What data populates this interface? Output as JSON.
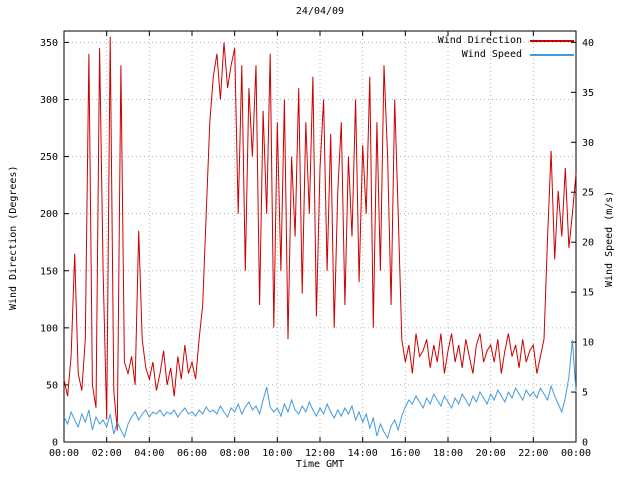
{
  "chart_data": {
    "type": "line",
    "title": "24/04/09",
    "xlabel": "Time GMT",
    "ylabel_left": "Wind Direction (Degrees)",
    "ylabel_right": "Wind Speed (m/s)",
    "x_range": [
      0,
      24
    ],
    "y_left_range": [
      0,
      360
    ],
    "y_right_range": [
      0,
      41.14
    ],
    "interval_minutes": 10,
    "x_ticks": [
      {
        "value": 0,
        "label": "00:00"
      },
      {
        "value": 2,
        "label": "02:00"
      },
      {
        "value": 4,
        "label": "04:00"
      },
      {
        "value": 6,
        "label": "06:00"
      },
      {
        "value": 8,
        "label": "08:00"
      },
      {
        "value": 10,
        "label": "10:00"
      },
      {
        "value": 12,
        "label": "12:00"
      },
      {
        "value": 14,
        "label": "14:00"
      },
      {
        "value": 16,
        "label": "16:00"
      },
      {
        "value": 18,
        "label": "18:00"
      },
      {
        "value": 20,
        "label": "20:00"
      },
      {
        "value": 22,
        "label": "22:00"
      },
      {
        "value": 24,
        "label": "00:00"
      }
    ],
    "y_left_ticks": [
      0,
      50,
      100,
      150,
      200,
      250,
      300,
      350
    ],
    "y_right_ticks": [
      0,
      5,
      10,
      15,
      20,
      25,
      30,
      35,
      40
    ],
    "grid": true,
    "legend_position": "top-right-inside",
    "colors": {
      "grid": "#b5b5b5",
      "axis": "#000000",
      "wind_direction": "#cc0000",
      "wind_speed": "#4499dd"
    },
    "series": [
      {
        "name": "Wind Direction",
        "axis": "left",
        "unit": "degrees",
        "color": "#cc0000",
        "values": [
          55,
          40,
          75,
          165,
          60,
          45,
          90,
          340,
          50,
          30,
          345,
          150,
          20,
          355,
          45,
          10,
          330,
          70,
          60,
          75,
          50,
          185,
          90,
          65,
          55,
          70,
          45,
          60,
          80,
          50,
          65,
          40,
          75,
          55,
          85,
          60,
          70,
          55,
          90,
          120,
          200,
          280,
          320,
          340,
          300,
          350,
          310,
          330,
          345,
          200,
          330,
          150,
          310,
          250,
          330,
          120,
          290,
          200,
          340,
          100,
          280,
          150,
          300,
          90,
          250,
          180,
          310,
          130,
          280,
          200,
          320,
          110,
          240,
          300,
          150,
          270,
          100,
          220,
          280,
          120,
          250,
          180,
          300,
          140,
          260,
          200,
          320,
          100,
          280,
          150,
          330,
          250,
          120,
          300,
          200,
          90,
          70,
          85,
          60,
          95,
          75,
          80,
          90,
          65,
          85,
          70,
          95,
          60,
          80,
          95,
          70,
          85,
          65,
          90,
          75,
          60,
          85,
          95,
          70,
          80,
          85,
          70,
          90,
          60,
          80,
          95,
          75,
          85,
          65,
          90,
          70,
          80,
          85,
          60,
          75,
          90,
          180,
          255,
          160,
          220,
          180,
          240,
          170,
          200,
          235
        ]
      },
      {
        "name": "Wind Speed",
        "axis": "right",
        "unit": "m/s",
        "color": "#4499dd",
        "values": [
          2.5,
          1.8,
          3.0,
          2.2,
          1.5,
          2.8,
          2.0,
          3.2,
          1.2,
          2.5,
          1.8,
          2.2,
          1.5,
          2.8,
          0.8,
          2.0,
          1.2,
          0.5,
          1.8,
          2.5,
          3.0,
          2.2,
          2.8,
          3.2,
          2.5,
          3.0,
          2.8,
          3.2,
          2.6,
          3.0,
          2.8,
          3.2,
          2.5,
          3.0,
          3.4,
          2.8,
          3.0,
          2.6,
          3.2,
          2.8,
          3.5,
          3.0,
          3.2,
          2.8,
          3.6,
          3.0,
          2.5,
          3.4,
          3.0,
          3.8,
          2.8,
          3.5,
          4.0,
          3.2,
          3.6,
          2.8,
          4.2,
          5.5,
          3.5,
          3.0,
          3.4,
          2.6,
          3.8,
          3.0,
          4.2,
          3.2,
          2.8,
          3.6,
          3.0,
          4.0,
          3.2,
          2.6,
          3.4,
          2.8,
          3.8,
          3.0,
          2.4,
          3.2,
          2.6,
          3.4,
          2.8,
          3.6,
          2.2,
          3.0,
          2.0,
          2.8,
          1.4,
          2.4,
          0.6,
          1.8,
          1.0,
          0.4,
          1.6,
          2.2,
          1.2,
          2.6,
          3.5,
          4.2,
          3.8,
          4.6,
          4.0,
          3.4,
          4.4,
          3.8,
          4.8,
          4.2,
          3.6,
          4.6,
          4.0,
          3.4,
          4.4,
          3.8,
          4.8,
          4.2,
          3.6,
          4.6,
          4.0,
          5.0,
          4.4,
          3.8,
          4.8,
          4.2,
          5.2,
          4.6,
          4.0,
          5.0,
          4.4,
          5.4,
          4.8,
          4.2,
          5.2,
          4.6,
          5.0,
          4.4,
          5.4,
          4.8,
          4.2,
          5.6,
          4.6,
          3.8,
          3.0,
          4.4,
          6.5,
          10.2,
          5.0
        ]
      }
    ]
  }
}
